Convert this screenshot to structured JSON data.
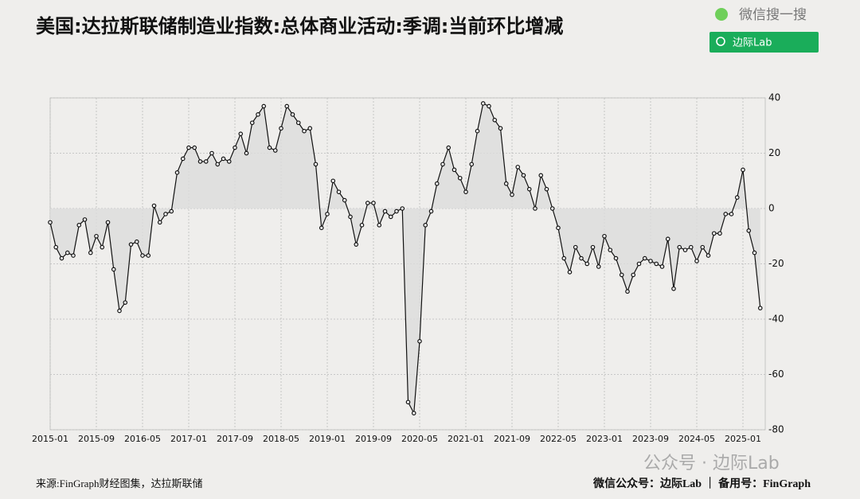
{
  "chart_data": {
    "type": "line",
    "title": "美国:达拉斯联储制造业指数:总体商业活动:季调:当前环比增减",
    "x": [
      "2015-01",
      "2015-02",
      "2015-03",
      "2015-04",
      "2015-05",
      "2015-06",
      "2015-07",
      "2015-08",
      "2015-09",
      "2015-10",
      "2015-11",
      "2015-12",
      "2016-01",
      "2016-02",
      "2016-03",
      "2016-04",
      "2016-05",
      "2016-06",
      "2016-07",
      "2016-08",
      "2016-09",
      "2016-10",
      "2016-11",
      "2016-12",
      "2017-01",
      "2017-02",
      "2017-03",
      "2017-04",
      "2017-05",
      "2017-06",
      "2017-07",
      "2017-08",
      "2017-09",
      "2017-10",
      "2017-11",
      "2017-12",
      "2018-01",
      "2018-02",
      "2018-03",
      "2018-04",
      "2018-05",
      "2018-06",
      "2018-07",
      "2018-08",
      "2018-09",
      "2018-10",
      "2018-11",
      "2018-12",
      "2019-01",
      "2019-02",
      "2019-03",
      "2019-04",
      "2019-05",
      "2019-06",
      "2019-07",
      "2019-08",
      "2019-09",
      "2019-10",
      "2019-11",
      "2019-12",
      "2020-01",
      "2020-02",
      "2020-03",
      "2020-04",
      "2020-05",
      "2020-06",
      "2020-07",
      "2020-08",
      "2020-09",
      "2020-10",
      "2020-11",
      "2020-12",
      "2021-01",
      "2021-02",
      "2021-03",
      "2021-04",
      "2021-05",
      "2021-06",
      "2021-07",
      "2021-08",
      "2021-09",
      "2021-10",
      "2021-11",
      "2021-12",
      "2022-01",
      "2022-02",
      "2022-03",
      "2022-04",
      "2022-05",
      "2022-06",
      "2022-07",
      "2022-08",
      "2022-09",
      "2022-10",
      "2022-11",
      "2022-12",
      "2023-01",
      "2023-02",
      "2023-03",
      "2023-04",
      "2023-05",
      "2023-06",
      "2023-07",
      "2023-08",
      "2023-09",
      "2023-10",
      "2023-11",
      "2023-12",
      "2024-01",
      "2024-02",
      "2024-03",
      "2024-04",
      "2024-05",
      "2024-06",
      "2024-07",
      "2024-08",
      "2024-09",
      "2024-10",
      "2024-11",
      "2024-12",
      "2025-01",
      "2025-02",
      "2025-03",
      "2025-04"
    ],
    "series": [
      {
        "color": "#111111",
        "values": [
          -5,
          -14,
          -18,
          -16,
          -17,
          -6,
          -4,
          -16,
          -10,
          -14,
          -5,
          -22,
          -37,
          -34,
          -13,
          -12,
          -17,
          -17,
          1,
          -5,
          -2,
          -1,
          13,
          18,
          22,
          22,
          17,
          17,
          20,
          16,
          18,
          17,
          22,
          27,
          20,
          31,
          34,
          37,
          22,
          21,
          29,
          37,
          34,
          31,
          28,
          29,
          16,
          -7,
          -2,
          10,
          6,
          3,
          -3,
          -13,
          -6,
          2,
          2,
          -6,
          -1,
          -3,
          -1,
          0,
          -70,
          -74,
          -48,
          -6,
          -1,
          9,
          16,
          22,
          14,
          11,
          6,
          16,
          28,
          38,
          37,
          32,
          29,
          9,
          5,
          15,
          12,
          7,
          0,
          12,
          7,
          0,
          -7,
          -18,
          -23,
          -14,
          -18,
          -20,
          -14,
          -21,
          -10,
          -15,
          -18,
          -24,
          -30,
          -24,
          -20,
          -18,
          -19,
          -20,
          -21,
          -11,
          -29,
          -14,
          -15,
          -14,
          -19,
          -14,
          -17,
          -9,
          -9,
          -2,
          -2,
          4,
          14,
          -8,
          -16,
          -36
        ]
      }
    ],
    "xticks": [
      "2015-01",
      "2015-09",
      "2016-05",
      "2017-01",
      "2017-09",
      "2018-05",
      "2019-01",
      "2019-09",
      "2020-05",
      "2021-01",
      "2021-09",
      "2022-05",
      "2023-01",
      "2023-09",
      "2024-05",
      "2025-01"
    ],
    "ylim": [
      -80,
      40
    ],
    "yticks": [
      -80,
      -60,
      -40,
      -20,
      0,
      20,
      40
    ],
    "grid": true,
    "area_color": "#dcdcdc"
  },
  "search": {
    "label": "微信搜一搜",
    "button": "边际Lab"
  },
  "watermark": "公众号 · 边际Lab",
  "footer": {
    "source": "来源:FinGraph财经图集，达拉斯联储",
    "account": "微信公众号：边际Lab ｜ 备用号：FinGraph"
  }
}
